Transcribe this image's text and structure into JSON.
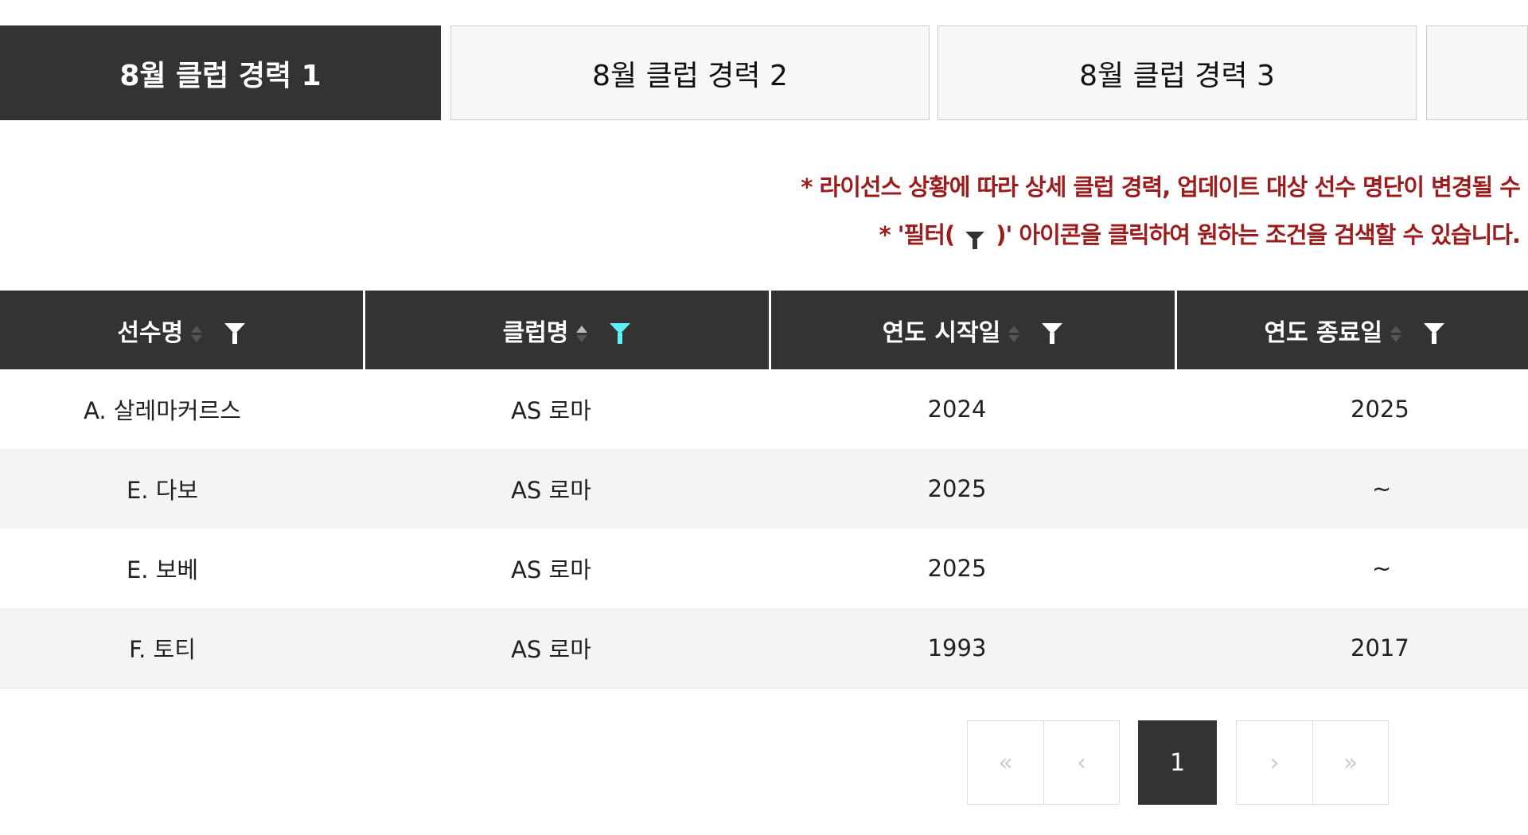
{
  "tabs": [
    {
      "label": "8월 클럽 경력 1",
      "active": true
    },
    {
      "label": "8월 클럽 경력 2",
      "active": false
    },
    {
      "label": "8월 클럽 경력 3",
      "active": false
    },
    {
      "label": "",
      "active": false
    }
  ],
  "notice": {
    "line1": "* 라이선스 상황에 따라 상세 클럽 경력, 업데이트 대상 선수 명단이 변경될 수",
    "line2_prefix": "* '필터(",
    "line2_suffix": ")' 아이콘을 클릭하여 원하는 조건을 검색할 수 있습니다.",
    "color": "#9b1c1c"
  },
  "table": {
    "columns": [
      "선수명",
      "클럽명",
      "연도 시작일",
      "연도 종료일"
    ],
    "active_filter_color": "#5ef0f5",
    "rows": [
      [
        "A. 살레마커르스",
        "AS 로마",
        "2024",
        "2025"
      ],
      [
        "E. 다보",
        "AS 로마",
        "2025",
        "~"
      ],
      [
        "E. 보베",
        "AS 로마",
        "2025",
        "~"
      ],
      [
        "F. 토티",
        "AS 로마",
        "1993",
        "2017"
      ]
    ]
  },
  "pagination": {
    "first": "«",
    "prev": "‹",
    "current": "1",
    "next": "›",
    "last": "»"
  }
}
